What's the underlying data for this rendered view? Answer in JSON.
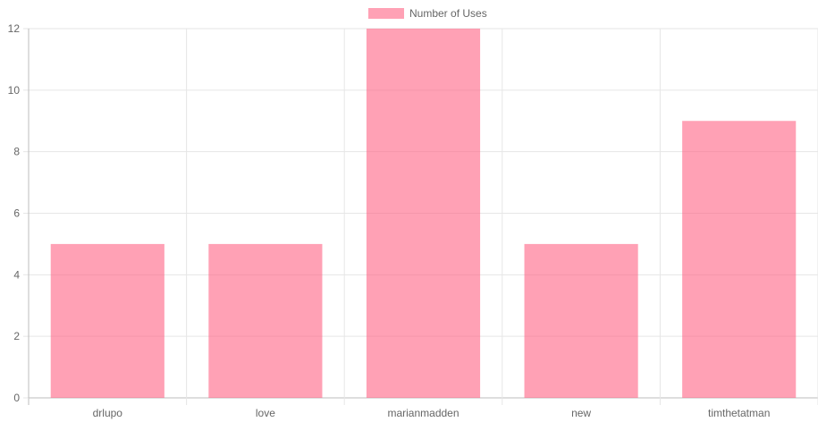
{
  "chart_data": {
    "type": "bar",
    "categories": [
      "drlupo",
      "love",
      "marianmadden",
      "new",
      "timthetatman"
    ],
    "series": [
      {
        "name": "Number of Uses",
        "values": [
          5,
          5,
          12,
          5,
          9
        ]
      }
    ],
    "ylim": [
      0,
      12
    ],
    "yticks": [
      0,
      2,
      4,
      6,
      8,
      10,
      12
    ],
    "grid": true,
    "legend_position": "top-center",
    "colors": {
      "bar_fill": "#ff6384",
      "bar_fill_opacity": 0.6,
      "grid": "#e6e6e6",
      "axis": "#bdbdbd",
      "text": "#666666"
    }
  }
}
